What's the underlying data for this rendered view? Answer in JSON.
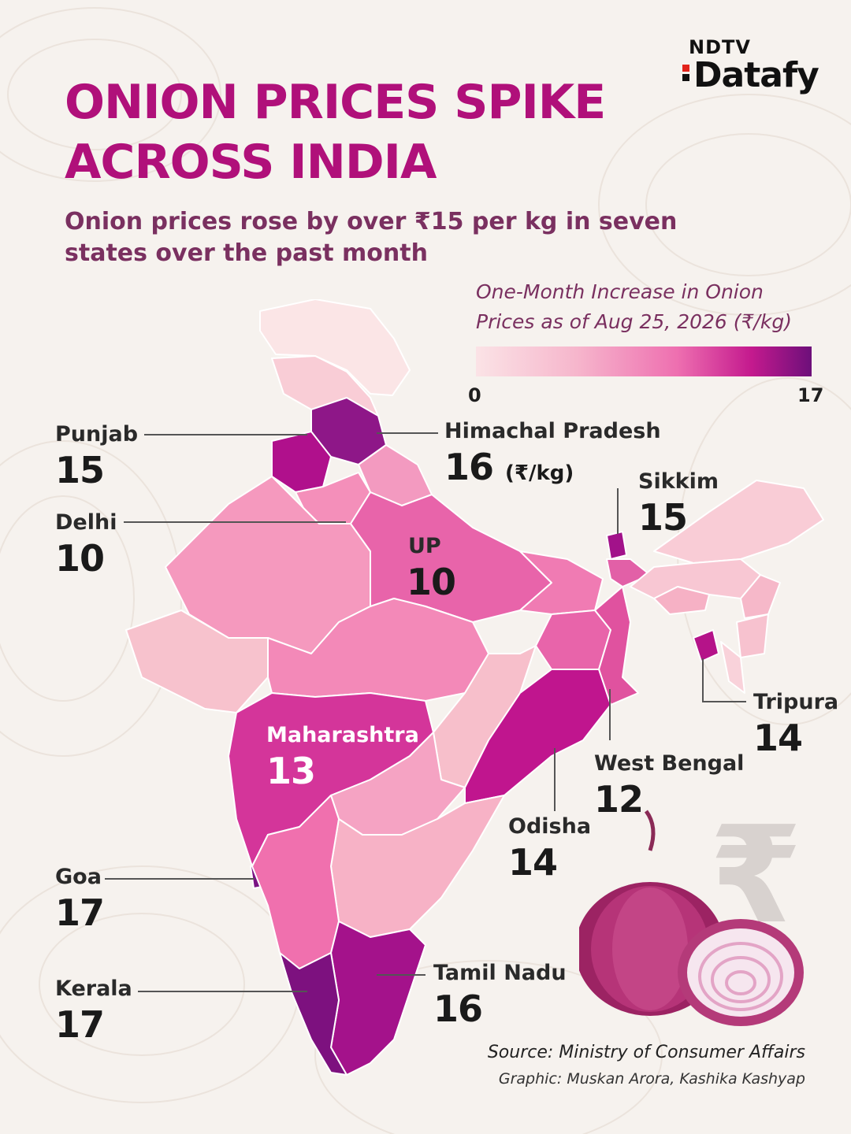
{
  "brand": {
    "top": "NDTV",
    "name": "Datafy"
  },
  "header": {
    "title": "ONION PRICES SPIKE ACROSS INDIA",
    "subtitle": "Onion prices rose by over ₹15 per kg in seven states over the past month"
  },
  "legend": {
    "title": "One-Month Increase in Onion Prices as of Aug 25, 2026 (₹/kg)",
    "min": "0",
    "max": "17",
    "colors": [
      "#fbe3e6",
      "#f6b6cc",
      "#ee6fb0",
      "#c41a8e",
      "#6d0f7a"
    ]
  },
  "states": [
    {
      "name": "Punjab",
      "value": "15"
    },
    {
      "name": "Himachal Pradesh",
      "value": "16",
      "unit": "(₹/kg)"
    },
    {
      "name": "Delhi",
      "value": "10"
    },
    {
      "name": "UP",
      "value": "10"
    },
    {
      "name": "Sikkim",
      "value": "15"
    },
    {
      "name": "Tripura",
      "value": "14"
    },
    {
      "name": "Maharashtra",
      "value": "13"
    },
    {
      "name": "West Bengal",
      "value": "12"
    },
    {
      "name": "Odisha",
      "value": "14"
    },
    {
      "name": "Goa",
      "value": "17"
    },
    {
      "name": "Kerala",
      "value": "17"
    },
    {
      "name": "Tamil Nadu",
      "value": "16"
    }
  ],
  "footer": {
    "source": "Source: Ministry of Consumer Affairs",
    "credit": "Graphic: Muskan Arora, Kashika Kashyap"
  },
  "icons": {
    "currency": "rupee-icon",
    "illustration": "onion-icon"
  }
}
